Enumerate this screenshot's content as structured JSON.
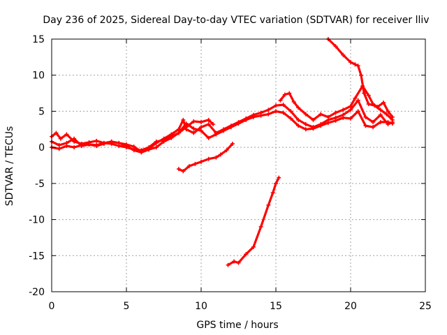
{
  "chart_data": {
    "type": "line",
    "title": "Day 236 of 2025, Sidereal Day-to-day VTEC variation (SDTVAR) for receiver lliv",
    "xlabel": "GPS time / hours",
    "ylabel": "SDTVAR / TECUs",
    "xlim": [
      0,
      25
    ],
    "ylim": [
      -20,
      15
    ],
    "xticks": [
      0,
      5,
      10,
      15,
      20,
      25
    ],
    "yticks": [
      -20,
      -15,
      -10,
      -5,
      0,
      5,
      10,
      15
    ],
    "xtick_labels": [
      "0",
      "5",
      "10",
      "15",
      "20",
      "25"
    ],
    "ytick_labels": [
      "-20",
      "-15",
      "-10",
      "-5",
      "0",
      "5",
      "10",
      "15"
    ],
    "grid": true,
    "marker": "+",
    "color": "#ff0000",
    "series": [
      {
        "points": [
          [
            0,
            1.5
          ],
          [
            0.3,
            2.0
          ],
          [
            0.6,
            1.2
          ],
          [
            1.0,
            1.8
          ],
          [
            1.5,
            0.8
          ],
          [
            2.0,
            0.5
          ],
          [
            2.5,
            0.7
          ],
          [
            3.0,
            0.9
          ],
          [
            3.5,
            0.6
          ],
          [
            4.0,
            0.8
          ],
          [
            4.5,
            0.6
          ],
          [
            5.0,
            0.4
          ],
          [
            5.5,
            0.1
          ],
          [
            6.0,
            -0.6
          ],
          [
            6.5,
            -0.2
          ],
          [
            7.0,
            0.6
          ],
          [
            7.5,
            1.2
          ],
          [
            8.0,
            1.8
          ],
          [
            8.5,
            2.5
          ],
          [
            8.8,
            3.8
          ],
          [
            9.0,
            2.5
          ],
          [
            9.5,
            2.0
          ],
          [
            10.0,
            2.8
          ],
          [
            10.5,
            3.2
          ],
          [
            11.0,
            2.0
          ],
          [
            11.5,
            2.5
          ],
          [
            12.0,
            3.0
          ],
          [
            12.5,
            3.5
          ],
          [
            13.0,
            4.0
          ],
          [
            13.5,
            4.5
          ],
          [
            14.0,
            4.8
          ],
          [
            14.5,
            5.2
          ],
          [
            15.0,
            5.8
          ],
          [
            15.5,
            5.9
          ],
          [
            16.0,
            5.0
          ],
          [
            16.5,
            3.8
          ],
          [
            17.0,
            3.2
          ],
          [
            17.5,
            2.8
          ],
          [
            18.0,
            3.2
          ],
          [
            18.5,
            3.8
          ],
          [
            19.0,
            4.1
          ],
          [
            19.5,
            4.5
          ],
          [
            20.0,
            5.2
          ],
          [
            20.5,
            6.5
          ],
          [
            21.0,
            4.2
          ],
          [
            21.5,
            3.5
          ],
          [
            22.0,
            4.5
          ],
          [
            22.5,
            3.2
          ],
          [
            22.8,
            3.5
          ]
        ]
      },
      {
        "points": [
          [
            0,
            0.8
          ],
          [
            0.5,
            0.3
          ],
          [
            1.0,
            0.6
          ],
          [
            1.5,
            1.2
          ],
          [
            2.0,
            0.2
          ],
          [
            2.5,
            0.4
          ],
          [
            3.0,
            0.3
          ],
          [
            3.5,
            0.6
          ],
          [
            4.0,
            0.5
          ],
          [
            4.5,
            0.2
          ],
          [
            5.0,
            0.0
          ],
          [
            5.5,
            -0.3
          ],
          [
            6.0,
            -0.4
          ],
          [
            6.5,
            0.0
          ],
          [
            7.0,
            0.8
          ],
          [
            7.5,
            1.0
          ],
          [
            8.0,
            1.5
          ],
          [
            8.5,
            2.0
          ],
          [
            9.0,
            3.3
          ],
          [
            9.5,
            2.6
          ],
          [
            10.0,
            2.3
          ],
          [
            10.5,
            1.3
          ],
          [
            11.0,
            1.8
          ],
          [
            11.5,
            2.3
          ],
          [
            12.0,
            2.8
          ],
          [
            12.5,
            3.3
          ],
          [
            13.0,
            3.8
          ],
          [
            13.5,
            4.2
          ],
          [
            14.0,
            4.4
          ],
          [
            14.5,
            4.6
          ],
          [
            15.0,
            5.0
          ],
          [
            15.5,
            4.8
          ],
          [
            16.0,
            4.0
          ],
          [
            16.5,
            3.0
          ],
          [
            17.0,
            2.5
          ],
          [
            17.5,
            2.6
          ],
          [
            18.0,
            3.0
          ],
          [
            18.5,
            3.4
          ],
          [
            19.0,
            3.7
          ],
          [
            19.5,
            4.1
          ],
          [
            20.0,
            4.0
          ],
          [
            20.5,
            5.0
          ],
          [
            21.0,
            3.0
          ],
          [
            21.5,
            2.8
          ],
          [
            22.0,
            3.5
          ],
          [
            22.5,
            3.5
          ],
          [
            22.8,
            3.3
          ]
        ]
      },
      {
        "points": [
          [
            0,
            0.0
          ],
          [
            0.5,
            -0.2
          ],
          [
            1.0,
            0.2
          ],
          [
            1.5,
            0.0
          ],
          [
            2.0,
            0.3
          ],
          [
            2.5,
            0.4
          ],
          [
            3.0,
            0.2
          ],
          [
            3.5,
            0.5
          ],
          [
            4.0,
            0.8
          ],
          [
            4.5,
            0.6
          ],
          [
            5.0,
            0.2
          ],
          [
            5.5,
            -0.4
          ],
          [
            6.0,
            -0.7
          ],
          [
            6.5,
            -0.3
          ],
          [
            7.0,
            0.0
          ],
          [
            7.5,
            0.8
          ],
          [
            8.0,
            1.3
          ],
          [
            8.5,
            2.0
          ],
          [
            9.0,
            2.8
          ],
          [
            9.5,
            3.6
          ],
          [
            10.0,
            3.5
          ],
          [
            10.5,
            3.8
          ],
          [
            10.8,
            3.2
          ]
        ]
      },
      {
        "points": [
          [
            15.3,
            6.5
          ],
          [
            15.6,
            7.3
          ],
          [
            15.9,
            7.5
          ],
          [
            16.2,
            6.3
          ],
          [
            16.5,
            5.5
          ],
          [
            17.0,
            4.6
          ],
          [
            17.5,
            3.8
          ],
          [
            18.0,
            4.6
          ],
          [
            18.5,
            4.2
          ],
          [
            19.0,
            4.8
          ],
          [
            19.5,
            5.2
          ],
          [
            20.0,
            5.7
          ],
          [
            20.3,
            6.8
          ],
          [
            20.8,
            8.5
          ],
          [
            21.2,
            7.2
          ],
          [
            21.5,
            6.0
          ],
          [
            21.8,
            5.6
          ],
          [
            22.2,
            6.2
          ],
          [
            22.5,
            5.0
          ],
          [
            22.8,
            4.2
          ]
        ]
      },
      {
        "points": [
          [
            18.5,
            15.0
          ],
          [
            19.0,
            14.0
          ],
          [
            19.5,
            12.8
          ],
          [
            20.0,
            11.8
          ],
          [
            20.3,
            11.5
          ],
          [
            20.5,
            11.3
          ],
          [
            20.7,
            10.0
          ],
          [
            20.9,
            7.5
          ],
          [
            21.2,
            6.0
          ],
          [
            21.6,
            5.8
          ],
          [
            22.0,
            5.2
          ],
          [
            22.4,
            4.6
          ],
          [
            22.8,
            3.8
          ]
        ]
      },
      {
        "points": [
          [
            8.5,
            -3.0
          ],
          [
            8.8,
            -3.3
          ],
          [
            9.2,
            -2.6
          ],
          [
            9.6,
            -2.3
          ],
          [
            10.0,
            -2.0
          ],
          [
            10.5,
            -1.6
          ],
          [
            11.0,
            -1.4
          ],
          [
            11.3,
            -1.0
          ],
          [
            11.7,
            -0.4
          ],
          [
            12.1,
            0.5
          ]
        ]
      },
      {
        "points": [
          [
            11.8,
            -16.3
          ],
          [
            12.2,
            -15.8
          ],
          [
            12.5,
            -16.0
          ],
          [
            13.0,
            -14.8
          ],
          [
            13.5,
            -13.8
          ],
          [
            14.0,
            -11.0
          ],
          [
            14.5,
            -8.0
          ],
          [
            14.8,
            -6.3
          ],
          [
            15.0,
            -5.0
          ],
          [
            15.2,
            -4.2
          ]
        ]
      }
    ]
  }
}
